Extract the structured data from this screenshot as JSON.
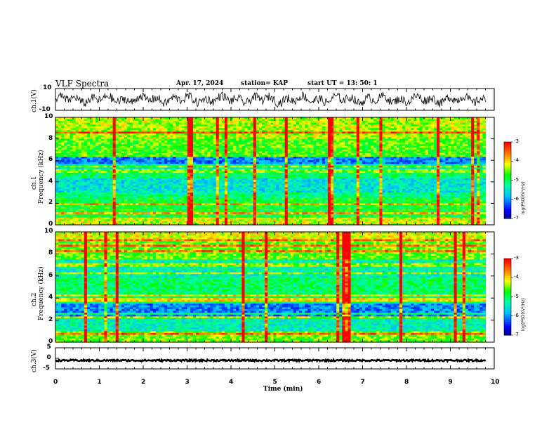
{
  "header": {
    "title": "VLF Spectra",
    "date": "Apr. 17, 2024",
    "station": "station= KAP",
    "start_ut": "start  UT  =   13: 50: 1"
  },
  "chart_data": {
    "type": "heatmap",
    "xlabel": "Time  (min)",
    "xlim": [
      0,
      10
    ],
    "xticks": [
      "0",
      "1",
      "2",
      "3",
      "4",
      "5",
      "6",
      "7",
      "8",
      "9",
      "10"
    ],
    "data_end_min": 9.8,
    "panels": [
      {
        "id": "ch1_waveform",
        "type": "line",
        "ylabel": "ch.1(V)",
        "ylim": [
          -10,
          10
        ],
        "yticks": [
          "10",
          "-10"
        ]
      },
      {
        "id": "ch1_spectrogram",
        "type": "heatmap",
        "ylabel_line1": "ch.1",
        "ylabel_line2": "Frequency  (kHz)",
        "ylim": [
          0,
          10
        ],
        "yticks": [
          "0",
          "2",
          "4",
          "6",
          "8",
          "10"
        ],
        "colorbar": {
          "label": "log(PSD)(V²/Hz)",
          "range": [
            -7,
            -3
          ],
          "ticks": [
            "-3",
            "-4",
            "-5",
            "-6",
            "-7"
          ]
        }
      },
      {
        "id": "ch2_spectrogram",
        "type": "heatmap",
        "ylabel_line1": "ch.2",
        "ylabel_line2": "Frequency  (kHz)",
        "ylim": [
          0,
          10
        ],
        "yticks": [
          "0",
          "2",
          "4",
          "6",
          "8",
          "10"
        ],
        "colorbar": {
          "label": "log(PSD)(V²/Hz)",
          "range": [
            -7,
            -3
          ],
          "ticks": [
            "-3",
            "-4",
            "-5",
            "-6",
            "-7"
          ]
        }
      },
      {
        "id": "ch3_waveform",
        "type": "line",
        "ylabel": "ch.3(V)",
        "ylim": [
          -5,
          5
        ],
        "yticks": [
          "5",
          "0",
          "-5"
        ],
        "level_v": -1
      }
    ],
    "colormap": [
      "#000080",
      "#0000ff",
      "#00bfff",
      "#00ffa0",
      "#00ff00",
      "#ffff00",
      "#ff8000",
      "#ff0000",
      "#ffffff"
    ]
  }
}
